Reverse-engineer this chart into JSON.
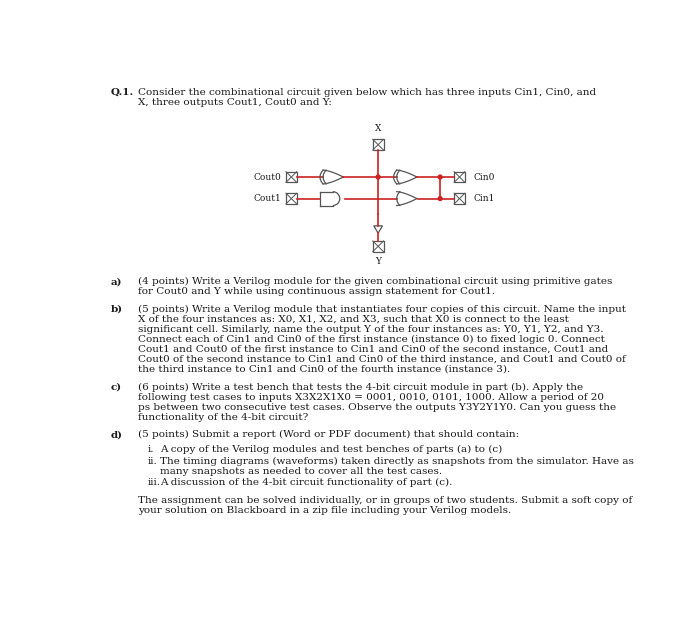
{
  "bg_color": "#f5f5f5",
  "text_color": "#1a1a1a",
  "circuit_wire_color": "#cc2222",
  "gate_color": "#555555",
  "font_size_body": 7.5,
  "font_size_small": 6.5,
  "title_line1": "Consider the combinational circuit given below which has three inputs Cin1, Cin0, and",
  "title_line2": "X, three outputs Cout1, Cout0 and Y:",
  "sec_a_lines": [
    "(4 points) Write a Verilog module for the given combinational circuit using primitive gates",
    "for Cout0 and Y while using continuous assign statement for Cout1."
  ],
  "sec_b_lines": [
    "(5 points) Write a Verilog module that instantiates four copies of this circuit. Name the input",
    "X of the four instances as: X0, X1, X2, and X3, such that X0 is connect to the least",
    "significant cell. Similarly, name the output Y of the four instances as: Y0, Y1, Y2, and Y3.",
    "Connect each of Cin1 and Cin0 of the first instance (instance 0) to fixed logic 0. Connect",
    "Cout1 and Cout0 of the first instance to Cin1 and Cin0 of the second instance, Cout1 and",
    "Cout0 of the second instance to Cin1 and Cin0 of the third instance, and Cout1 and Cout0 of",
    "the third instance to Cin1 and Cin0 of the fourth instance (instance 3)."
  ],
  "sec_c_lines": [
    "(6 points) Write a test bench that tests the 4-bit circuit module in part (b). Apply the",
    "following test cases to inputs X3X2X1X0 = 0001, 0010, 0101, 1000. Allow a period of 20",
    "ps between two consecutive test cases. Observe the outputs Y3Y2Y1Y0. Can you guess the",
    "functionality of the 4-bit circuit?"
  ],
  "sec_d_line": "(5 points) Submit a report (Word or PDF document) that should contain:",
  "sub_i": "A copy of the Verilog modules and test benches of parts (a) to (c)",
  "sub_ii_1": "The timing diagrams (waveforms) taken directly as snapshots from the simulator. Have as",
  "sub_ii_2": "many snapshots as needed to cover all the test cases.",
  "sub_iii": "A discussion of the 4-bit circuit functionality of part (c).",
  "footer_1": "The assignment can be solved individually, or in groups of two students. Submit a soft copy of",
  "footer_2": "your solution on Blackboard in a zip file including your Verilog models."
}
